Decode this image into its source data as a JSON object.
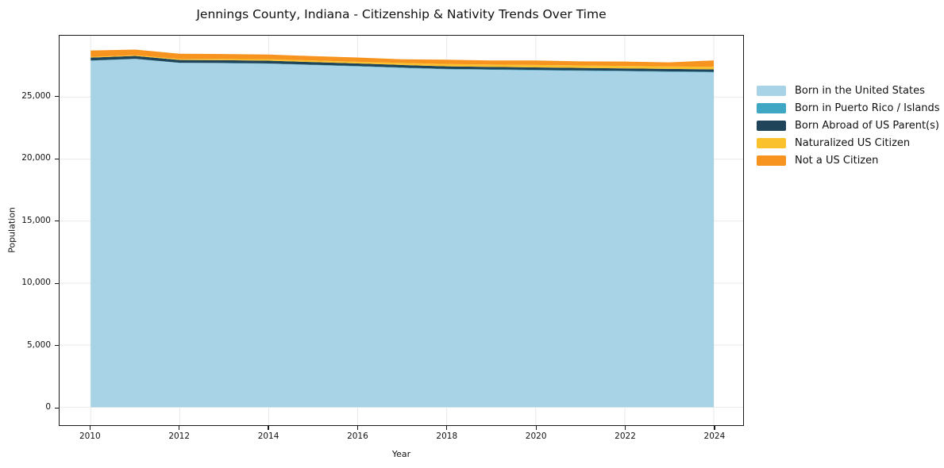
{
  "chart_data": {
    "type": "area",
    "stacked": true,
    "title": "Jennings County, Indiana - Citizenship & Nativity Trends Over Time",
    "xlabel": "Year",
    "ylabel": "Population",
    "x": [
      2010,
      2011,
      2012,
      2013,
      2014,
      2015,
      2016,
      2017,
      2018,
      2019,
      2020,
      2021,
      2022,
      2023,
      2024
    ],
    "series": [
      {
        "name": "Born in the United States",
        "color": "#a8d3e6",
        "values": [
          27930,
          28070,
          27750,
          27730,
          27690,
          27580,
          27470,
          27350,
          27240,
          27200,
          27150,
          27110,
          27080,
          27030,
          26990
        ]
      },
      {
        "name": "Born in Puerto Rico / Islands",
        "color": "#3fa6c3",
        "values": [
          20,
          20,
          20,
          20,
          25,
          25,
          30,
          30,
          35,
          35,
          40,
          40,
          40,
          45,
          50
        ]
      },
      {
        "name": "Born Abroad of US Parent(s)",
        "color": "#20455a",
        "values": [
          230,
          230,
          225,
          225,
          220,
          215,
          210,
          210,
          205,
          200,
          200,
          200,
          195,
          195,
          195
        ]
      },
      {
        "name": "Naturalized US Citizen",
        "color": "#fbc12d",
        "values": [
          60,
          60,
          80,
          100,
          120,
          130,
          140,
          160,
          185,
          190,
          200,
          200,
          200,
          200,
          205
        ]
      },
      {
        "name": "Not a US Citizen",
        "color": "#f6941f",
        "values": [
          520,
          450,
          420,
          400,
          380,
          350,
          340,
          300,
          350,
          330,
          360,
          330,
          345,
          330,
          520
        ]
      }
    ],
    "xlim": [
      2009.3,
      2024.66
    ],
    "ylim": [
      -1450,
      29950
    ],
    "y_ticks": [
      0,
      5000,
      10000,
      15000,
      20000,
      25000
    ],
    "y_tick_labels": [
      "0",
      "5,000",
      "10,000",
      "15,000",
      "20,000",
      "25,000"
    ],
    "x_ticks": [
      2010,
      2012,
      2014,
      2016,
      2018,
      2020,
      2022,
      2024
    ],
    "x_tick_labels": [
      "2010",
      "2012",
      "2014",
      "2016",
      "2018",
      "2020",
      "2022",
      "2024"
    ],
    "grid": true,
    "grid_color": "#e9e9e9",
    "legend_position": "right"
  }
}
